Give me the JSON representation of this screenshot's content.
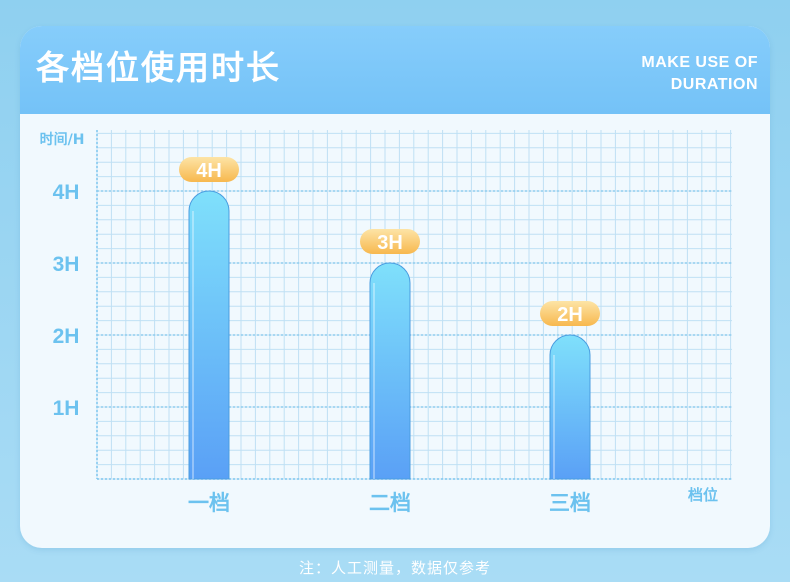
{
  "header": {
    "title": "各档位使用时长",
    "subtitle_line1": "MAKE USE OF",
    "subtitle_line2": "DURATION"
  },
  "footnote": "注：人工测量，数据仅参考",
  "colors": {
    "bar_top": "#7fe0fb",
    "bar_bottom": "#5aa0f6",
    "label_bg": "#fcc96a",
    "axis_text": "#6cc2ef",
    "grid": "#bfe0f4"
  },
  "chart_data": {
    "type": "bar",
    "title": "各档位使用时长",
    "ylabel": "时间/H",
    "xlabel": "档位",
    "categories": [
      "一档",
      "二档",
      "三档"
    ],
    "values": [
      4,
      3,
      2
    ],
    "value_labels": [
      "4H",
      "3H",
      "2H"
    ],
    "yticks": [
      1,
      2,
      3,
      4
    ],
    "ytick_labels": [
      "1H",
      "2H",
      "3H",
      "4H"
    ],
    "ylim": [
      0,
      4.8
    ],
    "grid": true,
    "legend": "none"
  }
}
